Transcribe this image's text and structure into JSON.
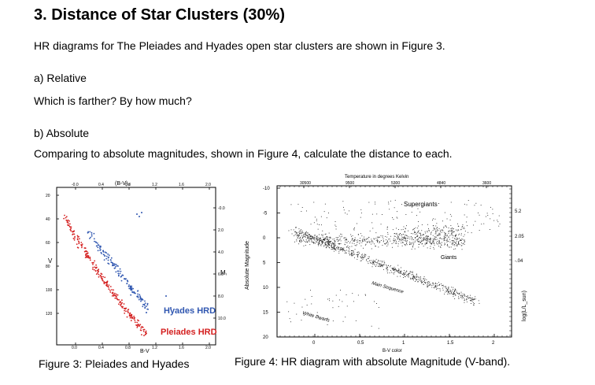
{
  "title": "3. Distance of Star Clusters (30%)",
  "intro": "HR diagrams for The Pleiades and Hyades open star clusters are shown in Figure 3.",
  "part_a": {
    "label": "a) Relative",
    "question": "Which is farther? By how much?"
  },
  "part_b": {
    "label": "b) Absolute",
    "question": "Comparing to absolute magnitudes, shown in Figure 4, calculate the distance to each."
  },
  "figure3": {
    "caption": "Figure 3: Pleiades and Hyades",
    "top_axis_label": "(B-V)₀",
    "bottom_axis_label": "B-V",
    "left_axis_label": "V",
    "right_axis_label": "Mᵥ",
    "top_ticks": [
      "-0.0",
      "0.4",
      "0.8",
      "1.2",
      "1.6",
      "2.0"
    ],
    "bottom_ticks": [
      "0.0",
      "0.4",
      "0.8",
      "1.2",
      "1.6",
      "2.0"
    ],
    "left_ticks": [
      "20",
      "40",
      "60",
      "80",
      "100",
      "120"
    ],
    "right_ticks": [
      "-0.0",
      "2.0",
      "4.0",
      "6.0",
      "8.0",
      "10.0"
    ],
    "legend": [
      {
        "label": "Hyades HRD",
        "color": "#2f56b0"
      },
      {
        "label": "Pleiades HRD",
        "color": "#d42020"
      }
    ]
  },
  "figure4": {
    "caption": "Figure 4: HR diagram with absolute Magnitude (V-band).",
    "top_axis_label": "Temperature in degrees Kelvin",
    "top_ticks": [
      "30500",
      "9500",
      "5300",
      "4840",
      "3600"
    ],
    "xlabel": "B-V color",
    "x_ticks": [
      "0",
      "0.5",
      "1",
      "1.5",
      "2"
    ],
    "ylabel": "Absolute Magnitude",
    "y_ticks": [
      "-10",
      "-5",
      "0",
      "5",
      "10",
      "15",
      "20"
    ],
    "right_axis_label": "log(L/L_sun)",
    "right_ticks": [
      "5.2",
      "2.05",
      "-.04"
    ],
    "region_labels": [
      "Supergiants",
      "Giants",
      "Main Sequence",
      "White Dwarfs"
    ]
  }
}
